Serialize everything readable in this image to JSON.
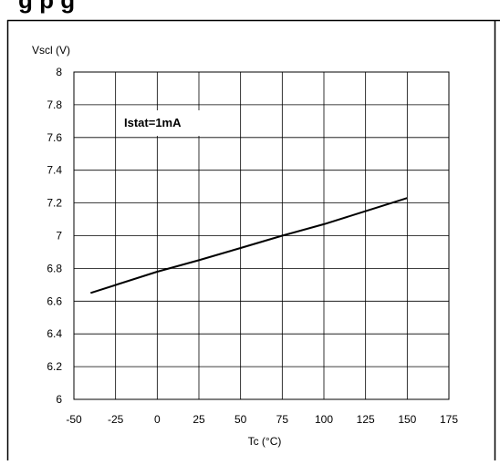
{
  "header": {
    "cut_title": "g                                  p g"
  },
  "chart_data": {
    "type": "line",
    "title": "",
    "xlabel": "Tc (°C)",
    "ylabel": "Vscl (V)",
    "xlim": [
      -50,
      175
    ],
    "ylim": [
      6,
      8
    ],
    "x_ticks": [
      -50,
      -25,
      0,
      25,
      50,
      75,
      100,
      125,
      150,
      175
    ],
    "y_ticks": [
      6,
      6.2,
      6.4,
      6.6,
      6.8,
      7,
      7.2,
      7.4,
      7.6,
      7.8,
      8
    ],
    "x_tick_labels": [
      "-50",
      "-25",
      "0",
      "25",
      "50",
      "75",
      "100",
      "125",
      "150",
      "175"
    ],
    "y_tick_labels": [
      "6",
      "6.2",
      "6.4",
      "6.6",
      "6.8",
      "7",
      "7.2",
      "7.4",
      "7.6",
      "7.8",
      "8"
    ],
    "grid": true,
    "annotation": "Istat=1mA",
    "series": [
      {
        "x": [
          -40,
          0,
          25,
          50,
          75,
          100,
          125,
          150
        ],
        "y": [
          6.65,
          6.78,
          6.85,
          6.925,
          7.0,
          7.07,
          7.15,
          7.23
        ]
      }
    ],
    "colors": {
      "line": "#000000",
      "grid": "#000000",
      "background": "#ffffff"
    }
  }
}
